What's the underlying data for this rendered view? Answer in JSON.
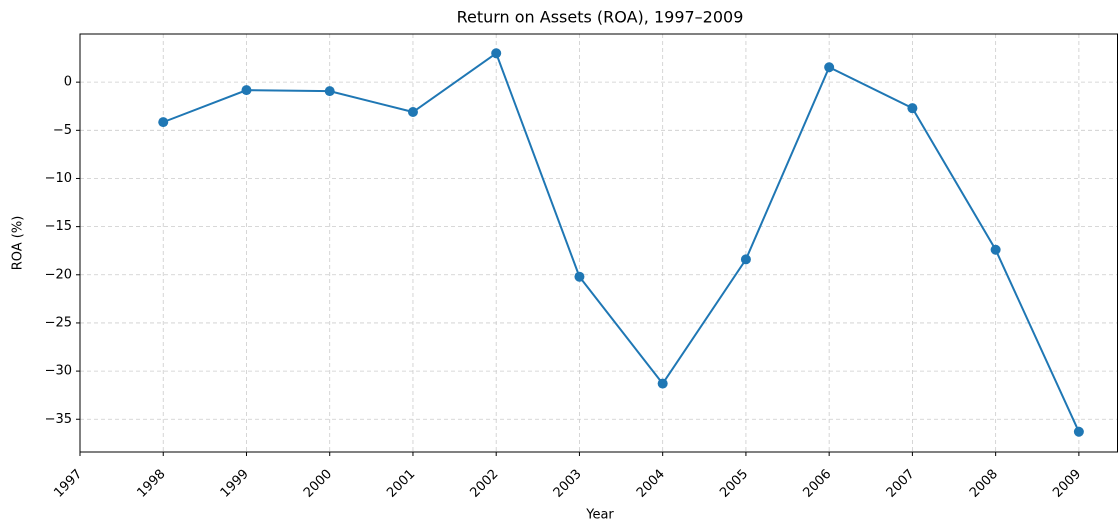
{
  "chart_data": {
    "type": "line",
    "title": "Return on Assets (ROA), 1997–2009",
    "x_label": "Year",
    "y_label": "ROA (%)",
    "x": [
      1998,
      1999,
      2000,
      2001,
      2002,
      2003,
      2004,
      2005,
      2006,
      2007,
      2008,
      2009
    ],
    "values": [
      -4.15,
      -0.83,
      -0.93,
      -3.1,
      3.0,
      -20.2,
      -31.3,
      -18.4,
      1.55,
      -2.7,
      -17.4,
      -36.3
    ],
    "color": "#1f77b4",
    "xlim": [
      1997,
      2009.47
    ],
    "xticks": [
      1997,
      1998,
      1999,
      2000,
      2001,
      2002,
      2003,
      2004,
      2005,
      2006,
      2007,
      2008,
      2009
    ],
    "ylim": [
      -38.4,
      5
    ],
    "yticks": [
      {
        "value": -35,
        "label": "−35"
      },
      {
        "value": -30,
        "label": "−30"
      },
      {
        "value": -25,
        "label": "−25"
      },
      {
        "value": -20,
        "label": "−20"
      },
      {
        "value": -15,
        "label": "−15"
      },
      {
        "value": -10,
        "label": "−10"
      },
      {
        "value": -5,
        "label": "−5"
      },
      0
    ],
    "grid": true
  }
}
